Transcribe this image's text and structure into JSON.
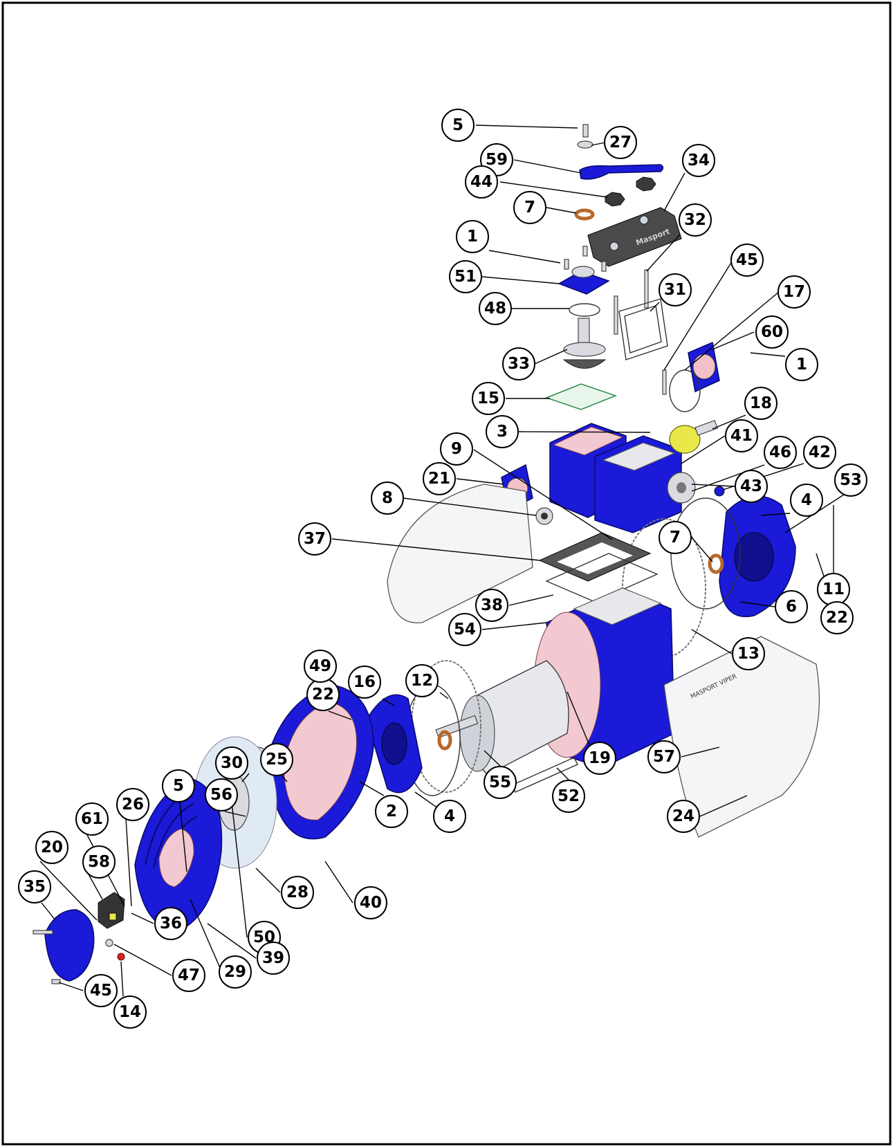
{
  "brand_text": {
    "cover_logo": "Masport",
    "guard_logo": "MASPORT VIPER"
  },
  "colors": {
    "part_blue": "#1a1ad8",
    "gasket_pink": "#f2c9d0",
    "washer_copper": "#b8682a",
    "frame": "#000000"
  },
  "callouts": [
    {
      "id": "c5a",
      "label": "5"
    },
    {
      "id": "c27",
      "label": "27"
    },
    {
      "id": "c59",
      "label": "59"
    },
    {
      "id": "c34",
      "label": "34"
    },
    {
      "id": "c44",
      "label": "44"
    },
    {
      "id": "c7a",
      "label": "7"
    },
    {
      "id": "c32",
      "label": "32"
    },
    {
      "id": "c1a",
      "label": "1"
    },
    {
      "id": "c45a",
      "label": "45"
    },
    {
      "id": "c51",
      "label": "51"
    },
    {
      "id": "c31",
      "label": "31"
    },
    {
      "id": "c17",
      "label": "17"
    },
    {
      "id": "c48",
      "label": "48"
    },
    {
      "id": "c60",
      "label": "60"
    },
    {
      "id": "c1b",
      "label": "1"
    },
    {
      "id": "c33",
      "label": "33"
    },
    {
      "id": "c15",
      "label": "15"
    },
    {
      "id": "c18",
      "label": "18"
    },
    {
      "id": "c3",
      "label": "3"
    },
    {
      "id": "c41",
      "label": "41"
    },
    {
      "id": "c46",
      "label": "46"
    },
    {
      "id": "c9",
      "label": "9"
    },
    {
      "id": "c21",
      "label": "21"
    },
    {
      "id": "c42",
      "label": "42"
    },
    {
      "id": "c43",
      "label": "43"
    },
    {
      "id": "c53",
      "label": "53"
    },
    {
      "id": "c8",
      "label": "8"
    },
    {
      "id": "c4a",
      "label": "4"
    },
    {
      "id": "c37",
      "label": "37"
    },
    {
      "id": "c7b",
      "label": "7"
    },
    {
      "id": "c11",
      "label": "11"
    },
    {
      "id": "c38",
      "label": "38"
    },
    {
      "id": "c6",
      "label": "6"
    },
    {
      "id": "c22a",
      "label": "22"
    },
    {
      "id": "c54",
      "label": "54"
    },
    {
      "id": "c13",
      "label": "13"
    },
    {
      "id": "c22b",
      "label": "22"
    },
    {
      "id": "c16",
      "label": "16"
    },
    {
      "id": "c12",
      "label": "12"
    },
    {
      "id": "c49",
      "label": "49"
    },
    {
      "id": "c30",
      "label": "30"
    },
    {
      "id": "c25",
      "label": "25"
    },
    {
      "id": "c19",
      "label": "19"
    },
    {
      "id": "c57",
      "label": "57"
    },
    {
      "id": "c55",
      "label": "55"
    },
    {
      "id": "c52",
      "label": "52"
    },
    {
      "id": "c2",
      "label": "2"
    },
    {
      "id": "c4b",
      "label": "4"
    },
    {
      "id": "c24",
      "label": "24"
    },
    {
      "id": "c5b",
      "label": "5"
    },
    {
      "id": "c56",
      "label": "56"
    },
    {
      "id": "c26",
      "label": "26"
    },
    {
      "id": "c61",
      "label": "61"
    },
    {
      "id": "c20",
      "label": "20"
    },
    {
      "id": "c58",
      "label": "58"
    },
    {
      "id": "c28",
      "label": "28"
    },
    {
      "id": "c40",
      "label": "40"
    },
    {
      "id": "c35",
      "label": "35"
    },
    {
      "id": "c36",
      "label": "36"
    },
    {
      "id": "c50",
      "label": "50"
    },
    {
      "id": "c39",
      "label": "39"
    },
    {
      "id": "c47",
      "label": "47"
    },
    {
      "id": "c29",
      "label": "29"
    },
    {
      "id": "c45b",
      "label": "45"
    },
    {
      "id": "c14",
      "label": "14"
    }
  ]
}
